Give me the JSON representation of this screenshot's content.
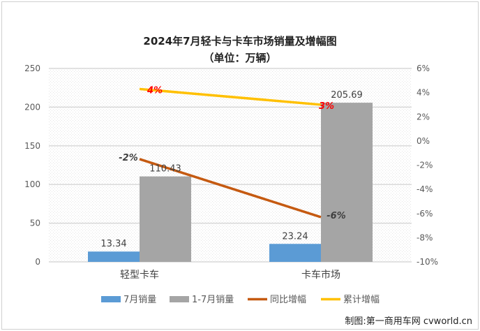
{
  "chart_data": {
    "type": "bar",
    "title": "2024年7月轻卡与卡车市场销量及增幅图",
    "subtitle": "（单位：万辆）",
    "categories": [
      "轻型卡车",
      "卡车市场"
    ],
    "y_left": {
      "range": [
        0,
        250
      ],
      "ticks": [
        "0",
        "50",
        "100",
        "150",
        "200",
        "250"
      ]
    },
    "y_right": {
      "range": [
        -10,
        6
      ],
      "ticks": [
        "-10%",
        "-8%",
        "-6%",
        "-4%",
        "-2%",
        "0%",
        "2%",
        "4%",
        "6%"
      ]
    },
    "grid": true,
    "legend_placement": "bottom",
    "series": [
      {
        "name": "7月销量",
        "kind": "bar",
        "axis": "left",
        "color": "#5b9bd5",
        "values": [
          13.34,
          23.24
        ],
        "labels": [
          "13.34",
          "23.24"
        ]
      },
      {
        "name": "1-7月销量",
        "kind": "bar",
        "axis": "left",
        "color": "#a5a5a5",
        "values": [
          110.43,
          205.69
        ],
        "labels": [
          "110.43",
          "205.69"
        ]
      },
      {
        "name": "同比增幅",
        "kind": "line",
        "axis": "right",
        "color": "#c55a11",
        "values": [
          -1.5,
          -6.3
        ],
        "labels": [
          "-2%",
          "-6%"
        ],
        "label_color": "#404040"
      },
      {
        "name": "累计增幅",
        "kind": "line",
        "axis": "right",
        "color": "#ffc000",
        "values": [
          4.3,
          3.0
        ],
        "labels": [
          "4%",
          "3%"
        ],
        "label_color": "#ff0000"
      }
    ]
  },
  "credit": "制图:第一商用车网 cvworld.cn"
}
